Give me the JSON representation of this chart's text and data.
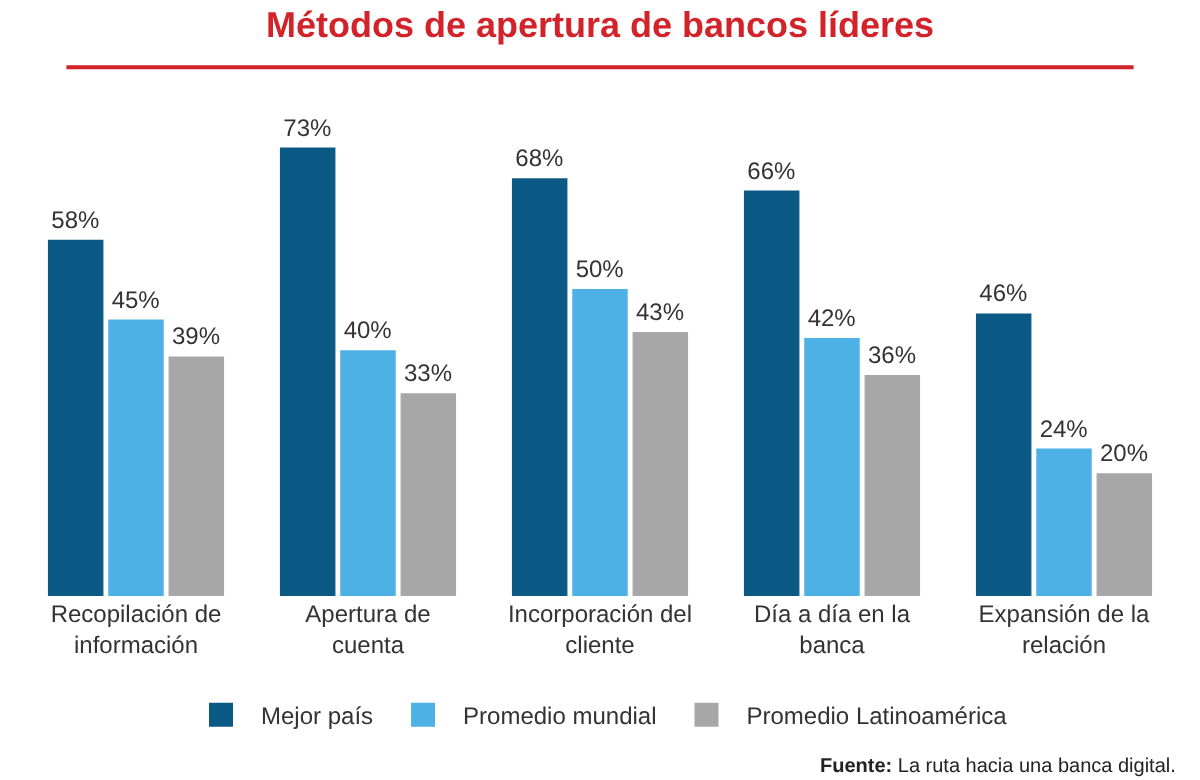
{
  "chart_data": {
    "type": "bar",
    "title": "Métodos de apertura de bancos líderes",
    "categories": [
      "Recopilación de información",
      "Apertura de cuenta",
      "Incorporación del cliente",
      "Día a día en la banca",
      "Expansión de la relación"
    ],
    "series": [
      {
        "name": "Mejor país",
        "color": "#0b5a85",
        "values": [
          58,
          73,
          68,
          66,
          46
        ],
        "value_labels": [
          "58%",
          "73%",
          "68%",
          "66%",
          "46%"
        ]
      },
      {
        "name": "Promedio mundial",
        "color": "#4eb1e6",
        "values": [
          45,
          40,
          50,
          42,
          24
        ],
        "value_labels": [
          "45%",
          "40%",
          "50%",
          "42%",
          "24%"
        ]
      },
      {
        "name": "Promedio Latinoamérica",
        "color": "#a7a7a7",
        "values": [
          39,
          33,
          43,
          36,
          20
        ],
        "value_labels": [
          "39%",
          "33%",
          "43%",
          "36%",
          "20%"
        ]
      }
    ],
    "legend": "bottom",
    "annotations": [
      "Fuente: La ruta hacia una banca digital."
    ]
  }
}
